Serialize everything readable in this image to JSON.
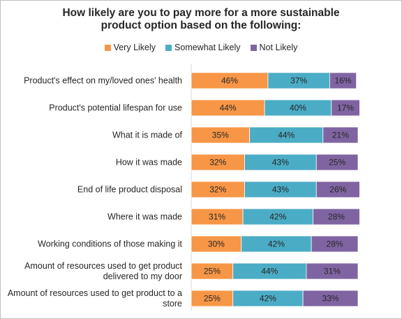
{
  "chart_data": {
    "type": "bar",
    "orientation": "horizontal",
    "stacked": true,
    "title": "How likely are you to pay more for a more sustainable product option based on the following:",
    "title_lines": [
      "How likely are you to pay more for a more sustainable",
      "product option based on the following:"
    ],
    "legend_position": "top",
    "categories": [
      [
        "Product's effect on my/loved ones' health"
      ],
      [
        "Product's potential lifespan for use"
      ],
      [
        "What it is made of"
      ],
      [
        "How it was made"
      ],
      [
        "End of life product disposal"
      ],
      [
        "Where it was made"
      ],
      [
        "Working conditions of those making it"
      ],
      [
        "Amount of resources used to get product",
        "delivered to my door"
      ],
      [
        "Amount of resources used to get product to a",
        "store"
      ]
    ],
    "series": [
      {
        "name": "Very Likely",
        "color": "#f79646",
        "values": [
          46,
          44,
          35,
          32,
          32,
          31,
          30,
          25,
          25
        ]
      },
      {
        "name": "Somewhat Likely",
        "color": "#4bacc6",
        "values": [
          37,
          40,
          44,
          43,
          43,
          42,
          42,
          44,
          42
        ]
      },
      {
        "name": "Not Likely",
        "color": "#8064a2",
        "values": [
          16,
          17,
          21,
          25,
          26,
          28,
          28,
          31,
          33
        ]
      }
    ],
    "value_suffix": "%",
    "xlim": [
      0,
      100
    ],
    "grid": false
  }
}
